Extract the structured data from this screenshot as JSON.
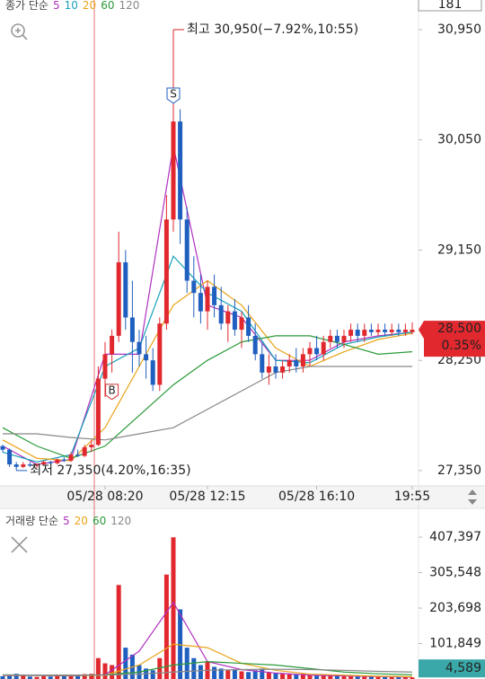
{
  "chart_data": [
    {
      "type": "candlestick",
      "top_label": "181",
      "legend_title": "종가 단순",
      "up_color": "#e0282e",
      "down_color": "#1f5fbf",
      "open": [
        27550,
        27520,
        27400,
        27380,
        27400,
        27390,
        27400,
        27420,
        27410,
        27440,
        27430,
        27480,
        27470,
        27540,
        27560,
        28100,
        28300,
        28450,
        29050,
        28600,
        28400,
        28300,
        28250,
        28050,
        28550,
        29400,
        30200,
        29400,
        28900,
        28800,
        28650,
        28850,
        28700,
        28550,
        28650,
        28500,
        28600,
        28450,
        28300,
        28150,
        28200,
        28150,
        28200,
        28250,
        28200,
        28300,
        28350,
        28300,
        28400,
        28450,
        28400,
        28450,
        28500,
        28450,
        28500,
        28480,
        28500,
        28480,
        28500,
        28480,
        28480
      ],
      "high": [
        27560,
        27530,
        27420,
        27420,
        27420,
        27410,
        27430,
        27430,
        27450,
        27460,
        27500,
        27520,
        27560,
        27600,
        28200,
        28400,
        28500,
        29300,
        29150,
        28900,
        28500,
        28450,
        28350,
        28600,
        29600,
        30950,
        30300,
        29500,
        29100,
        28950,
        28900,
        28950,
        28850,
        28700,
        28750,
        28650,
        28700,
        28550,
        28400,
        28300,
        28300,
        28250,
        28300,
        28350,
        28350,
        28400,
        28450,
        28450,
        28500,
        28500,
        28500,
        28550,
        28550,
        28550,
        28550,
        28550,
        28550,
        28550,
        28550,
        28550,
        28560
      ],
      "low": [
        27500,
        27380,
        27350,
        27370,
        27380,
        27370,
        27390,
        27400,
        27400,
        27420,
        27420,
        27460,
        27460,
        27500,
        27550,
        27950,
        28150,
        28400,
        28500,
        28150,
        28200,
        28100,
        28000,
        28000,
        28500,
        29300,
        29200,
        28800,
        28600,
        28550,
        28500,
        28600,
        28500,
        28400,
        28450,
        28350,
        28400,
        28250,
        28100,
        28050,
        28100,
        28100,
        28150,
        28150,
        28150,
        28200,
        28250,
        28250,
        28350,
        28350,
        28350,
        28400,
        28400,
        28400,
        28450,
        28450,
        28450,
        28450,
        28450,
        28450,
        28460
      ],
      "close": [
        27520,
        27400,
        27380,
        27400,
        27390,
        27400,
        27420,
        27410,
        27440,
        27430,
        27480,
        27470,
        27540,
        27560,
        28100,
        28300,
        28450,
        29050,
        28600,
        28400,
        28300,
        28250,
        28050,
        28550,
        29400,
        30200,
        29400,
        28900,
        28800,
        28650,
        28850,
        28700,
        28550,
        28650,
        28500,
        28600,
        28450,
        28300,
        28150,
        28200,
        28150,
        28200,
        28250,
        28200,
        28300,
        28350,
        28300,
        28400,
        28450,
        28400,
        28450,
        28500,
        28450,
        28500,
        28480,
        28500,
        28480,
        28500,
        28480,
        28500,
        28500
      ],
      "series": [
        {
          "name": "5",
          "color": "#b030c0",
          "x": [
            0,
            5,
            10,
            15,
            20,
            25,
            30,
            35,
            40,
            45,
            50,
            55,
            60
          ],
          "values": [
            27550,
            27400,
            27440,
            28300,
            28300,
            30000,
            28700,
            28600,
            28250,
            28250,
            28400,
            28450,
            28480
          ]
        },
        {
          "name": "10",
          "color": "#17a2b8",
          "x": [
            0,
            5,
            10,
            15,
            20,
            25,
            30,
            35,
            40,
            45,
            50,
            55,
            60
          ],
          "values": [
            27500,
            27420,
            27480,
            28200,
            28350,
            29100,
            28800,
            28650,
            28250,
            28230,
            28380,
            28440,
            28480
          ]
        },
        {
          "name": "20",
          "color": "#e8a317",
          "x": [
            0,
            5,
            10,
            15,
            20,
            25,
            30,
            35,
            40,
            45,
            50,
            55,
            60
          ],
          "values": [
            27600,
            27450,
            27430,
            27700,
            28200,
            28700,
            28900,
            28700,
            28350,
            28200,
            28320,
            28420,
            28470
          ]
        },
        {
          "name": "60",
          "color": "#2a9a3a",
          "x": [
            0,
            5,
            10,
            15,
            20,
            25,
            30,
            35,
            40,
            45,
            50,
            55,
            60
          ],
          "values": [
            27700,
            27550,
            27450,
            27550,
            27800,
            28050,
            28250,
            28400,
            28450,
            28450,
            28380,
            28300,
            28320
          ]
        },
        {
          "name": "120",
          "color": "#888888",
          "x": [
            0,
            5,
            10,
            15,
            20,
            25,
            30,
            35,
            40,
            45,
            50,
            55,
            60
          ],
          "values": [
            27650,
            27650,
            27620,
            27600,
            27650,
            27700,
            27850,
            28000,
            28150,
            28200,
            28200,
            28200,
            28200
          ]
        }
      ],
      "ylim": [
        27232,
        31192
      ],
      "yticks": [
        {
          "value": 30950,
          "label": "30,950"
        },
        {
          "value": 30050,
          "label": "30,050"
        },
        {
          "value": 29150,
          "label": "29,150"
        },
        {
          "value": 28250,
          "label": "28,250"
        },
        {
          "value": 27350,
          "label": "27,350"
        }
      ],
      "xticks": [
        {
          "value": 15,
          "label": "05/28 08:20"
        },
        {
          "value": 30,
          "label": "05/28 12:15"
        },
        {
          "value": 46,
          "label": "05/28 16:10"
        },
        {
          "value": 60,
          "label": "19:55"
        }
      ],
      "markers": [
        {
          "index": 16,
          "label": "B"
        },
        {
          "index": 25,
          "label": "S"
        }
      ],
      "annotations": [
        {
          "index": 25,
          "value": 30950,
          "label": "최고 30,950(−7.92%,10:55)",
          "color": "#d02020"
        },
        {
          "index": 2,
          "value": 27350,
          "label": "최저 27,350(4.20%,16:35)",
          "color": "#1f5fbf"
        }
      ],
      "price_tag": {
        "value": 28500,
        "label": "28,500",
        "change": "0.35%",
        "color": "#e0282e"
      }
    },
    {
      "type": "bar",
      "legend_title": "거래량 단순",
      "values": [
        8000,
        12000,
        15000,
        9000,
        7000,
        6000,
        8000,
        7000,
        9000,
        8000,
        12000,
        9000,
        14000,
        15000,
        60000,
        45000,
        40000,
        270000,
        90000,
        70000,
        40000,
        30000,
        25000,
        60000,
        300000,
        407000,
        200000,
        90000,
        60000,
        40000,
        50000,
        35000,
        30000,
        25000,
        28000,
        22000,
        20000,
        25000,
        30000,
        20000,
        18000,
        15000,
        14000,
        13000,
        15000,
        12000,
        10000,
        11000,
        9000,
        10000,
        8000,
        9000,
        8000,
        7000,
        8000,
        7000,
        6000,
        7000,
        6000,
        5000,
        4589
      ],
      "series": [
        {
          "name": "5",
          "color": "#b030c0",
          "x": [
            0,
            5,
            10,
            15,
            20,
            25,
            30,
            35,
            40,
            45,
            50,
            55,
            60
          ],
          "values": [
            10000,
            10000,
            9000,
            12000,
            80000,
            220000,
            50000,
            27000,
            17000,
            11000,
            9000,
            7000,
            5500
          ]
        },
        {
          "name": "20",
          "color": "#e8a317",
          "x": [
            0,
            5,
            10,
            15,
            20,
            25,
            30,
            35,
            40,
            45,
            50,
            55,
            60
          ],
          "values": [
            11000,
            10500,
            10000,
            11000,
            40000,
            100000,
            90000,
            45000,
            25000,
            14000,
            11000,
            8000,
            6500
          ]
        },
        {
          "name": "60",
          "color": "#2a9a3a",
          "x": [
            0,
            5,
            10,
            15,
            20,
            25,
            30,
            35,
            40,
            45,
            50,
            55,
            60
          ],
          "values": [
            12000,
            11000,
            11000,
            12000,
            20000,
            40000,
            50000,
            45000,
            40000,
            30000,
            20000,
            15000,
            12000
          ]
        },
        {
          "name": "120",
          "color": "#888888",
          "x": [
            0,
            5,
            10,
            15,
            20,
            25,
            30,
            35,
            40,
            45,
            50,
            55,
            60
          ],
          "values": [
            11500,
            11500,
            11000,
            11500,
            14000,
            20000,
            25000,
            27000,
            28000,
            27000,
            25000,
            22000,
            20000
          ]
        }
      ],
      "ylim": [
        0,
        485000
      ],
      "yticks": [
        {
          "value": 407397,
          "label": "407,397"
        },
        {
          "value": 305548,
          "label": "305,548"
        },
        {
          "value": 203698,
          "label": "203,698"
        },
        {
          "value": 101849,
          "label": "101,849"
        }
      ],
      "value_tag": {
        "value": 4589,
        "label": "4,589",
        "color": "#3aa8a8"
      }
    }
  ]
}
